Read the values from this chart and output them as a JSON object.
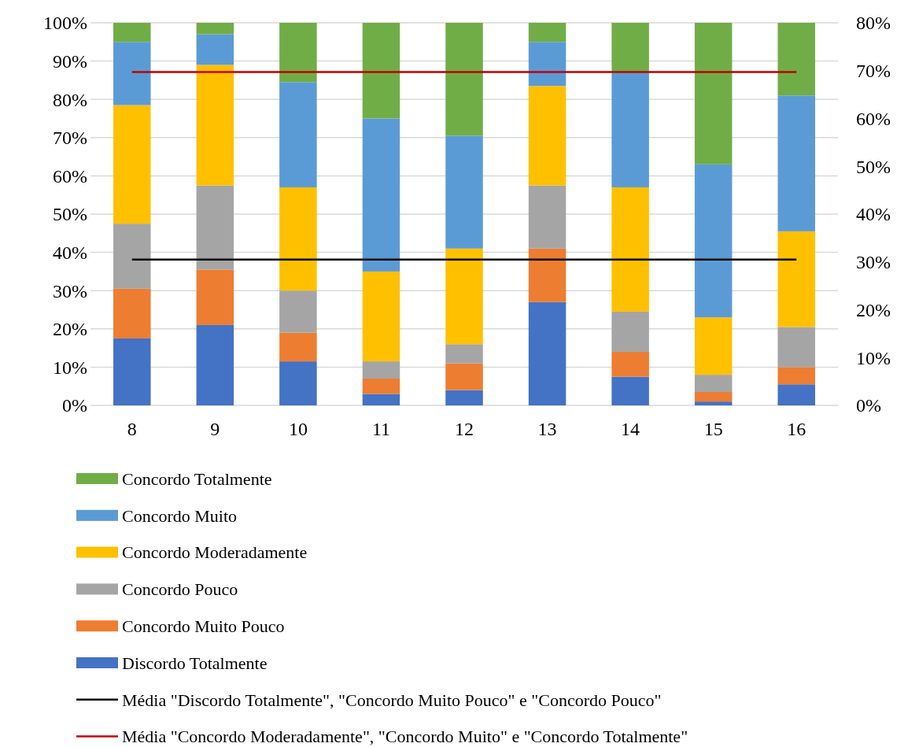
{
  "chart_data": {
    "type": "bar",
    "stacked": true,
    "categories": [
      "8",
      "9",
      "10",
      "11",
      "12",
      "13",
      "14",
      "15",
      "16"
    ],
    "series": [
      {
        "name": "Discordo Totalmente",
        "color": "#4472c4",
        "values": [
          17.5,
          21,
          11.5,
          3,
          4,
          27,
          7.5,
          1,
          5.5
        ]
      },
      {
        "name": "Concordo Muito Pouco",
        "color": "#ed7d31",
        "values": [
          13,
          14.5,
          7.5,
          4,
          7,
          14,
          6.5,
          2.5,
          4.5
        ]
      },
      {
        "name": "Concordo Pouco",
        "color": "#a5a5a5",
        "values": [
          17,
          22,
          11,
          4.5,
          5,
          16.5,
          10.5,
          4.5,
          10.5
        ]
      },
      {
        "name": "Concordo Moderadamente",
        "color": "#ffc000",
        "values": [
          31,
          31.5,
          27,
          23.5,
          25,
          26,
          32.5,
          15,
          25
        ]
      },
      {
        "name": "Concordo Muito",
        "color": "#5b9bd5",
        "values": [
          16.5,
          8,
          27.5,
          40,
          29.5,
          11.5,
          30,
          40,
          35.5
        ]
      },
      {
        "name": "Concordo Totalmente",
        "color": "#70ad47",
        "values": [
          5,
          3,
          15.5,
          25,
          29.5,
          5,
          13,
          37,
          19
        ]
      },
      {
        "name": "Média \"Discordo Totalmente\", \"Concordo Muito Pouco\" e \"Concordo Pouco\"",
        "type": "line",
        "axis": "y2",
        "color": "#000000",
        "values": [
          30.5,
          30.5,
          30.5,
          30.5,
          30.5,
          30.5,
          30.5,
          30.5,
          30.5
        ]
      },
      {
        "name": "Média \"Concordo Moderadamente\", \"Concordo Muito\" e \"Concordo Totalmente\"",
        "type": "line",
        "axis": "y2",
        "color": "#c00000",
        "values": [
          69.7,
          69.7,
          69.7,
          69.7,
          69.7,
          69.7,
          69.7,
          69.7,
          69.7
        ]
      }
    ],
    "ylim": [
      0,
      100
    ],
    "yticks": [
      {
        "value": 0,
        "label": "0%"
      },
      {
        "value": 10,
        "label": "10%"
      },
      {
        "value": 20,
        "label": "20%"
      },
      {
        "value": 30,
        "label": "30%"
      },
      {
        "value": 40,
        "label": "40%"
      },
      {
        "value": 50,
        "label": "50%"
      },
      {
        "value": 60,
        "label": "60%"
      },
      {
        "value": 70,
        "label": "70%"
      },
      {
        "value": 80,
        "label": "80%"
      },
      {
        "value": 90,
        "label": "90%"
      },
      {
        "value": 100,
        "label": "100%"
      }
    ],
    "y2lim": [
      0,
      80
    ],
    "y2ticks": [
      {
        "value": 0,
        "label": "0%"
      },
      {
        "value": 10,
        "label": "10%"
      },
      {
        "value": 20,
        "label": "20%"
      },
      {
        "value": 30,
        "label": "30%"
      },
      {
        "value": 40,
        "label": "40%"
      },
      {
        "value": 50,
        "label": "50%"
      },
      {
        "value": 60,
        "label": "60%"
      },
      {
        "value": 70,
        "label": "70%"
      },
      {
        "value": 80,
        "label": "80%"
      }
    ],
    "grid": "y",
    "legend": "bottom",
    "marker": "none",
    "line_style": "solid"
  }
}
